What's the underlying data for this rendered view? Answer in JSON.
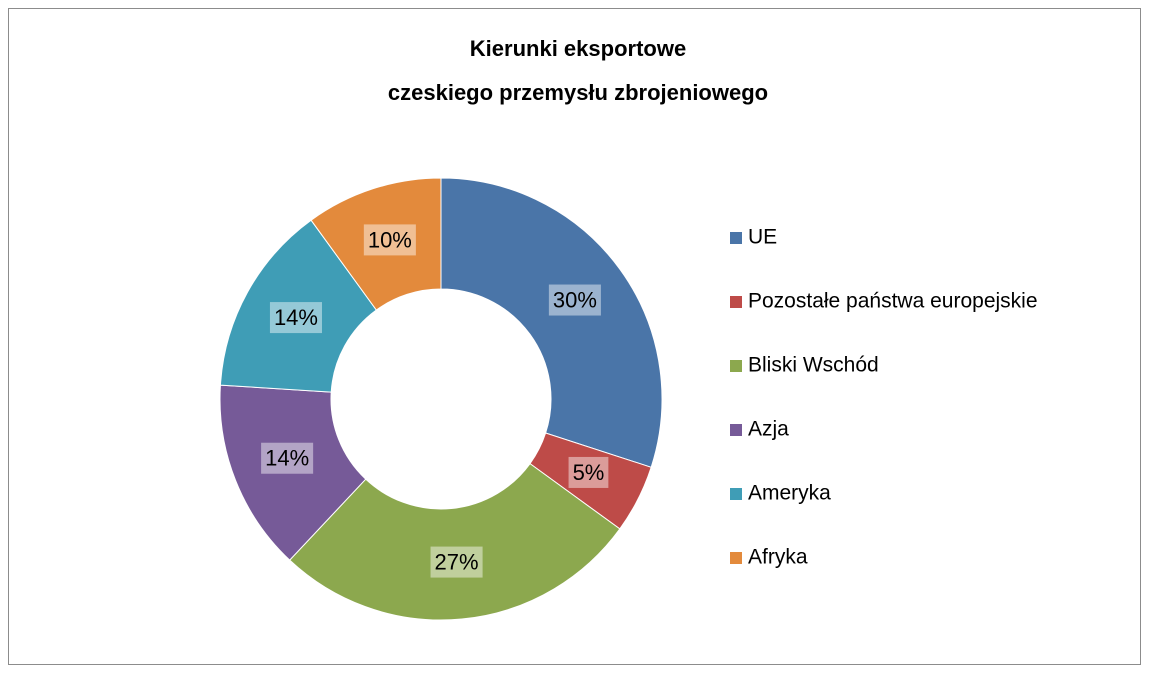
{
  "chart_data": {
    "type": "donut",
    "title": [
      "Kierunki eksportowe",
      "czeskiego przemysłu zbrojeniowego"
    ],
    "categories": [
      "UE",
      "Pozostałe państwa europejskie",
      "Bliski Wschód",
      "Azja",
      "Ameryka",
      "Afryka"
    ],
    "values": [
      30,
      5,
      27,
      14,
      14,
      10
    ],
    "value_labels": [
      "30%",
      "5%",
      "27%",
      "14%",
      "14%",
      "10%"
    ],
    "colors": [
      "#4a75a8",
      "#be4b48",
      "#8ca84e",
      "#765a98",
      "#3f9db6",
      "#e38a3c"
    ],
    "legend": "right"
  }
}
